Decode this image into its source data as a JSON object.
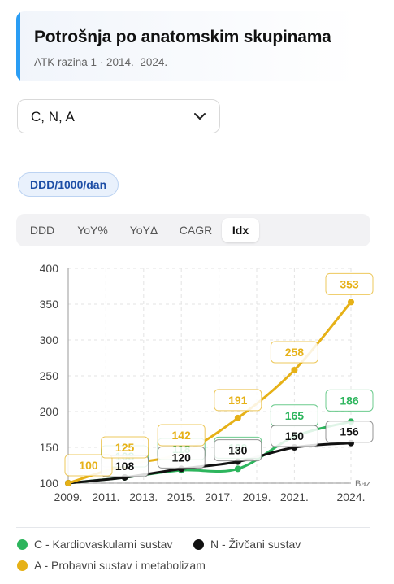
{
  "header": {
    "title": "Potrošnja po anatomskim skupinama",
    "subtitle": "ATK razina 1 · 2014.–2024."
  },
  "filter": {
    "selected": "C, N, A"
  },
  "unit_pill": {
    "label": "DDD/1000/dan"
  },
  "tabs": [
    {
      "label": "DDD",
      "active": false
    },
    {
      "label": "YoY%",
      "active": false
    },
    {
      "label": "YoYΔ",
      "active": false
    },
    {
      "label": "CAGR",
      "active": false
    },
    {
      "label": "Idx",
      "active": true
    }
  ],
  "colors": {
    "C": "#2db55d",
    "N": "#111111",
    "A": "#e6b117",
    "accent": "#2a9df4"
  },
  "chart_data": {
    "type": "line",
    "ylim": [
      100,
      400
    ],
    "yticks": [
      "100",
      "150",
      "200",
      "250",
      "300",
      "350",
      "400"
    ],
    "xlim": [
      2009,
      2024
    ],
    "xticks": [
      "2009.",
      "2011.",
      "2013.",
      "2015.",
      "2017.",
      "2019.",
      "2021.",
      "2024."
    ],
    "baseline": {
      "value": 100,
      "label": "Baz"
    },
    "legend_position": "bottom",
    "series": [
      {
        "key": "C",
        "name": "C - Kardiovaskularni sustav",
        "x": [
          2009,
          2012,
          2015,
          2018,
          2021,
          2024
        ],
        "y": [
          100,
          108,
          118,
          120,
          165,
          186
        ],
        "labels": [
          "100",
          "108",
          "118",
          "120",
          "165",
          "186"
        ]
      },
      {
        "key": "N",
        "name": "N - Živčani sustav",
        "x": [
          2009,
          2012,
          2015,
          2018,
          2021,
          2024
        ],
        "y": [
          100,
          108,
          120,
          130,
          150,
          156
        ],
        "labels": [
          "100",
          "108",
          "120",
          "130",
          "150",
          "156"
        ]
      },
      {
        "key": "A",
        "name": "A - Probavni sustav i metabolizam",
        "x": [
          2009,
          2012,
          2015,
          2018,
          2021,
          2024
        ],
        "y": [
          100,
          125,
          142,
          191,
          258,
          353
        ],
        "labels": [
          "100",
          "125",
          "142",
          "191",
          "258",
          "353"
        ]
      }
    ]
  }
}
